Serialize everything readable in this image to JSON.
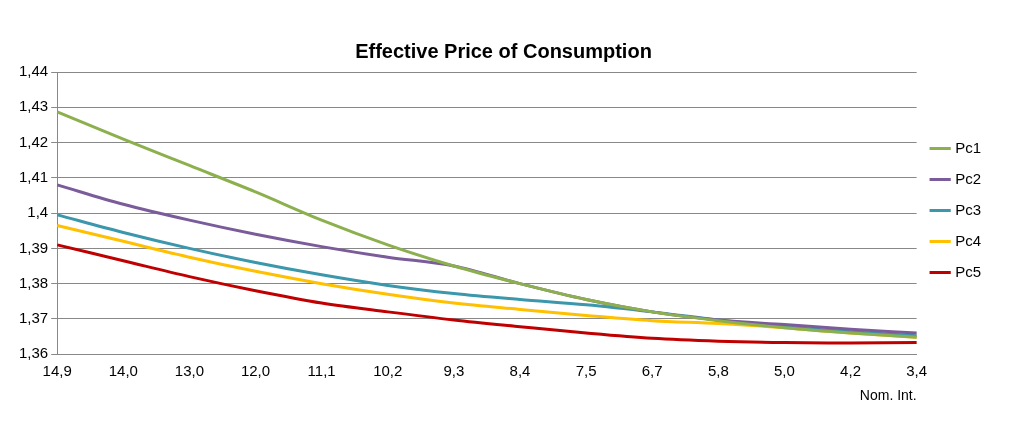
{
  "chart_data": {
    "type": "line",
    "title": "Effective Price of Consumption",
    "xlabel": "Nom. Int.",
    "categories": [
      "14,9",
      "14,0",
      "13,0",
      "12,0",
      "11,1",
      "10,2",
      "9,3",
      "8,4",
      "7,5",
      "6,7",
      "5,8",
      "5,0",
      "4,2",
      "3,4"
    ],
    "ylim": [
      1.36,
      1.44
    ],
    "yticks": [
      {
        "value": 1.36,
        "label": "1,36"
      },
      {
        "value": 1.37,
        "label": "1,37"
      },
      {
        "value": 1.38,
        "label": "1,38"
      },
      {
        "value": 1.39,
        "label": "1,39"
      },
      {
        "value": 1.4,
        "label": "1,4"
      },
      {
        "value": 1.41,
        "label": "1,41"
      },
      {
        "value": 1.42,
        "label": "1,42"
      },
      {
        "value": 1.43,
        "label": "1,43"
      },
      {
        "value": 1.44,
        "label": "1,44"
      }
    ],
    "grid": "y",
    "legend": "right",
    "marker": "none",
    "line_style": "solid",
    "series": [
      {
        "name": "Pc1",
        "color": "#8db04f",
        "values": [
          1.4287,
          1.421,
          1.4135,
          1.406,
          1.398,
          1.391,
          1.385,
          1.38,
          1.3755,
          1.372,
          1.3695,
          1.3675,
          1.366,
          1.3648
        ]
      },
      {
        "name": "Pc2",
        "color": "#7b5c9a",
        "values": [
          1.408,
          1.4025,
          1.398,
          1.394,
          1.3905,
          1.3875,
          1.385,
          1.38,
          1.3755,
          1.372,
          1.3697,
          1.3684,
          1.3671,
          1.366
        ]
      },
      {
        "name": "Pc3",
        "color": "#3b97ab",
        "values": [
          1.3995,
          1.3945,
          1.39,
          1.386,
          1.3825,
          1.3795,
          1.3772,
          1.3755,
          1.374,
          1.372,
          1.3697,
          1.3678,
          1.3664,
          1.3652
        ]
      },
      {
        "name": "Pc4",
        "color": "#ffc000",
        "values": [
          1.3965,
          1.392,
          1.3875,
          1.3835,
          1.38,
          1.377,
          1.3745,
          1.3727,
          1.371,
          1.3695,
          1.3687,
          1.3675,
          1.366,
          1.3648
        ]
      },
      {
        "name": "Pc5",
        "color": "#c00000",
        "values": [
          1.391,
          1.3865,
          1.382,
          1.378,
          1.3745,
          1.372,
          1.3697,
          1.3678,
          1.366,
          1.3645,
          1.3637,
          1.3633,
          1.3632,
          1.3633
        ]
      }
    ]
  }
}
